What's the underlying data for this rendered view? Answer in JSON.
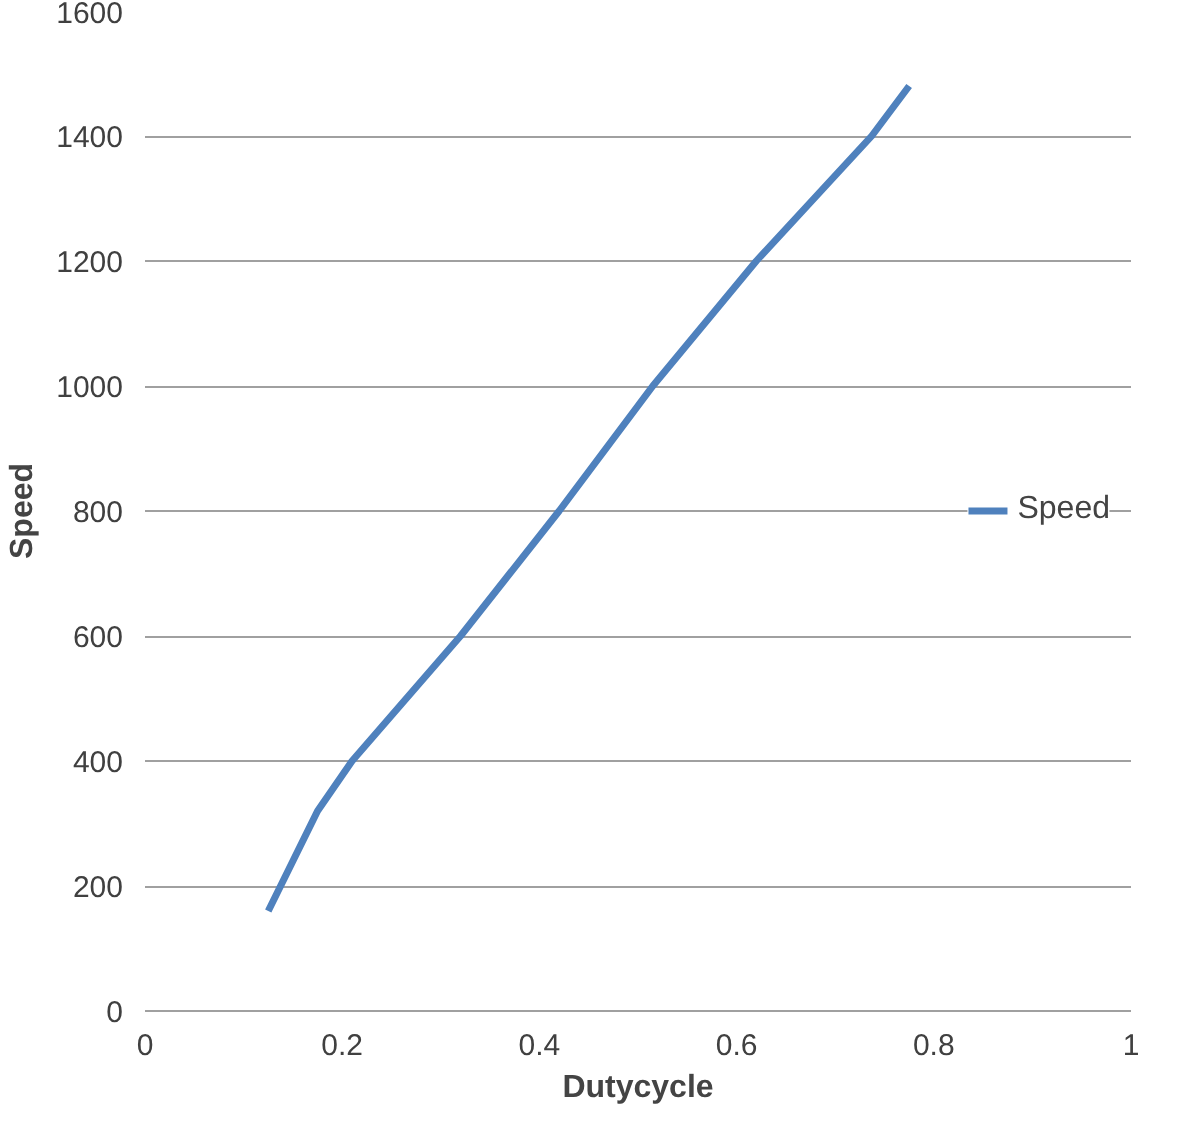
{
  "chart_data": {
    "type": "line",
    "xlabel": "Dutycycle",
    "ylabel": "Speed",
    "x": [
      0.125,
      0.15,
      0.175,
      0.21,
      0.32,
      0.42,
      0.515,
      0.62,
      0.737,
      0.775
    ],
    "series": [
      {
        "name": "Speed",
        "color": "#4f81bd",
        "values": [
          160,
          240,
          320,
          400,
          600,
          800,
          1000,
          1200,
          1400,
          1480
        ]
      }
    ],
    "xlim": [
      0,
      1
    ],
    "ylim": [
      0,
      1600
    ],
    "xticks": [
      0,
      0.2,
      0.4,
      0.6,
      0.8,
      1
    ],
    "yticks": [
      0,
      200,
      400,
      600,
      800,
      1000,
      1200,
      1400,
      1600
    ],
    "grid": "y",
    "legend": "right",
    "marker": "none",
    "line_style": "solid"
  }
}
